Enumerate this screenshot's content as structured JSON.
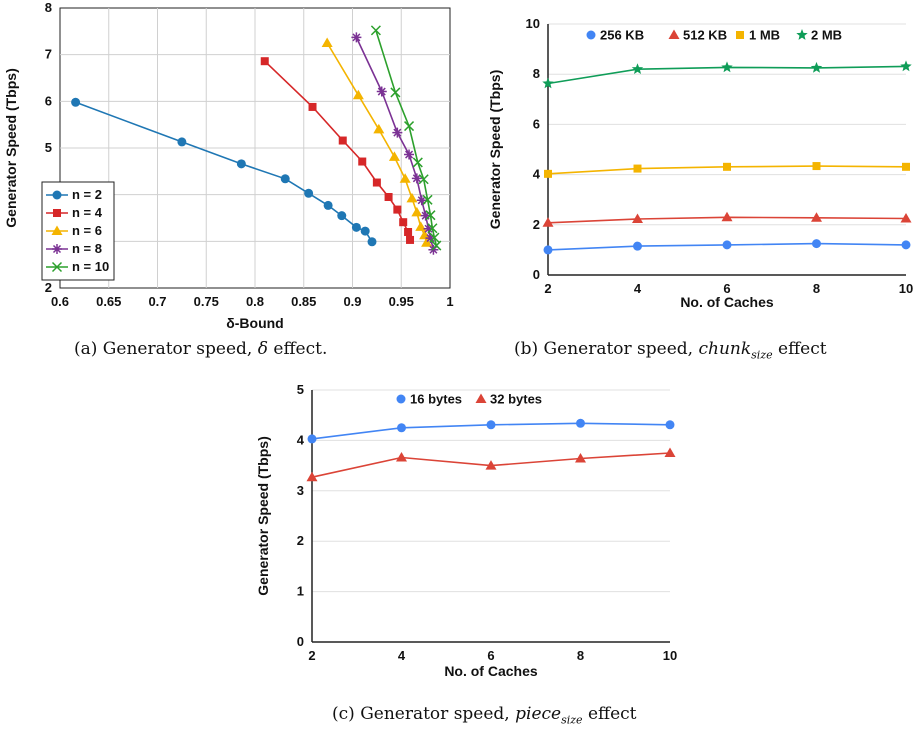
{
  "captions": [
    {
      "prefix": "(a) Generator speed, ",
      "italic": "δ",
      "suffix": " effect."
    },
    {
      "prefix": "(b) Generator speed, ",
      "italic": "chunk",
      "sub": "size",
      "suffix": " effect"
    },
    {
      "prefix": "(c) Generator speed, ",
      "italic": "piece",
      "sub": "size",
      "suffix": " effect"
    }
  ],
  "colors": {
    "blue": "#1f77b4",
    "red": "#d62728",
    "orange": "#f4b400",
    "purple": "#7b3294",
    "green": "#2ca02c",
    "b_blue": "#4285f4",
    "b_red": "#db4437",
    "b_yellow": "#f4b400",
    "b_green": "#0f9d58"
  },
  "chart_data": [
    {
      "id": "a",
      "type": "line",
      "xlabel": "δ-Bound",
      "ylabel": "Generator Speed (Tbps)",
      "xlim": [
        0.6,
        1.0
      ],
      "ylim": [
        2,
        8
      ],
      "xticks": [
        0.6,
        0.65,
        0.7,
        0.75,
        0.8,
        0.85,
        0.9,
        0.95,
        1
      ],
      "xtick_labels": [
        "0.6",
        "0.65",
        "0.7",
        "0.75",
        "0.8",
        "0.85",
        "0.9",
        "0.95",
        "1"
      ],
      "yticks": [
        2,
        3,
        4,
        5,
        6,
        7,
        8
      ],
      "grid": true,
      "legend": "bottom-left",
      "series": [
        {
          "name": "n = 2",
          "color": "#1f77b4",
          "marker": "circle",
          "x": [
            0.616,
            0.725,
            0.786,
            0.831,
            0.855,
            0.875,
            0.889,
            0.904,
            0.913,
            0.92
          ],
          "y": [
            5.98,
            5.13,
            4.66,
            4.34,
            4.03,
            3.77,
            3.55,
            3.3,
            3.22,
            2.99
          ]
        },
        {
          "name": "n = 4",
          "color": "#d62728",
          "marker": "square",
          "x": [
            0.81,
            0.859,
            0.89,
            0.91,
            0.925,
            0.937,
            0.946,
            0.952,
            0.957,
            0.959
          ],
          "y": [
            6.86,
            5.88,
            5.16,
            4.71,
            4.26,
            3.95,
            3.68,
            3.41,
            3.2,
            3.03
          ]
        },
        {
          "name": "n = 6",
          "color": "#f4b400",
          "marker": "triangle",
          "x": [
            0.874,
            0.906,
            0.927,
            0.943,
            0.954,
            0.961,
            0.966,
            0.97,
            0.974,
            0.976
          ],
          "y": [
            7.25,
            6.13,
            5.4,
            4.81,
            4.34,
            3.92,
            3.62,
            3.31,
            3.13,
            2.97
          ]
        },
        {
          "name": "n = 8",
          "color": "#7b3294",
          "marker": "asterisk",
          "x": [
            0.904,
            0.93,
            0.946,
            0.958,
            0.966,
            0.971,
            0.975,
            0.978,
            0.98,
            0.983
          ],
          "y": [
            7.37,
            6.21,
            5.33,
            4.86,
            4.35,
            3.88,
            3.55,
            3.27,
            3.07,
            2.82
          ]
        },
        {
          "name": "n = 10",
          "color": "#2ca02c",
          "marker": "x",
          "x": [
            0.924,
            0.944,
            0.958,
            0.967,
            0.973,
            0.977,
            0.98,
            0.982,
            0.984,
            0.986
          ],
          "y": [
            7.52,
            6.19,
            5.47,
            4.69,
            4.33,
            3.89,
            3.56,
            3.28,
            3.08,
            2.91
          ]
        }
      ]
    },
    {
      "id": "b",
      "type": "line",
      "xlabel": "No. of Caches",
      "ylabel": "Generator Speed (Tbps)",
      "xlim": [
        2,
        10
      ],
      "ylim": [
        0,
        10
      ],
      "xticks": [
        2,
        4,
        6,
        8,
        10
      ],
      "yticks": [
        0,
        2,
        4,
        6,
        8,
        10
      ],
      "grid": true,
      "legend": "top",
      "series": [
        {
          "name": "256 KB",
          "color": "#4285f4",
          "marker": "circle",
          "x": [
            2,
            4,
            6,
            8,
            10
          ],
          "y": [
            1.0,
            1.15,
            1.2,
            1.25,
            1.2
          ]
        },
        {
          "name": "512 KB",
          "color": "#db4437",
          "marker": "triangle",
          "x": [
            2,
            4,
            6,
            8,
            10
          ],
          "y": [
            2.08,
            2.23,
            2.3,
            2.28,
            2.25
          ]
        },
        {
          "name": "1 MB",
          "color": "#f4b400",
          "marker": "square",
          "x": [
            2,
            4,
            6,
            8,
            10
          ],
          "y": [
            4.03,
            4.24,
            4.31,
            4.34,
            4.31
          ]
        },
        {
          "name": "2 MB",
          "color": "#0f9d58",
          "marker": "star",
          "x": [
            2,
            4,
            6,
            8,
            10
          ],
          "y": [
            7.63,
            8.2,
            8.27,
            8.25,
            8.31
          ]
        }
      ]
    },
    {
      "id": "c",
      "type": "line",
      "xlabel": "No. of Caches",
      "ylabel": "Generator Speed (Tbps)",
      "xlim": [
        2,
        10
      ],
      "ylim": [
        0,
        5
      ],
      "xticks": [
        2,
        4,
        6,
        8,
        10
      ],
      "yticks": [
        0,
        1,
        2,
        3,
        4,
        5
      ],
      "grid": true,
      "legend": "top",
      "series": [
        {
          "name": "16 bytes",
          "color": "#4285f4",
          "marker": "circle",
          "x": [
            2,
            4,
            6,
            8,
            10
          ],
          "y": [
            4.03,
            4.25,
            4.31,
            4.34,
            4.31
          ]
        },
        {
          "name": "32 bytes",
          "color": "#db4437",
          "marker": "triangle",
          "x": [
            2,
            4,
            6,
            8,
            10
          ],
          "y": [
            3.27,
            3.66,
            3.5,
            3.64,
            3.75
          ]
        }
      ]
    }
  ]
}
